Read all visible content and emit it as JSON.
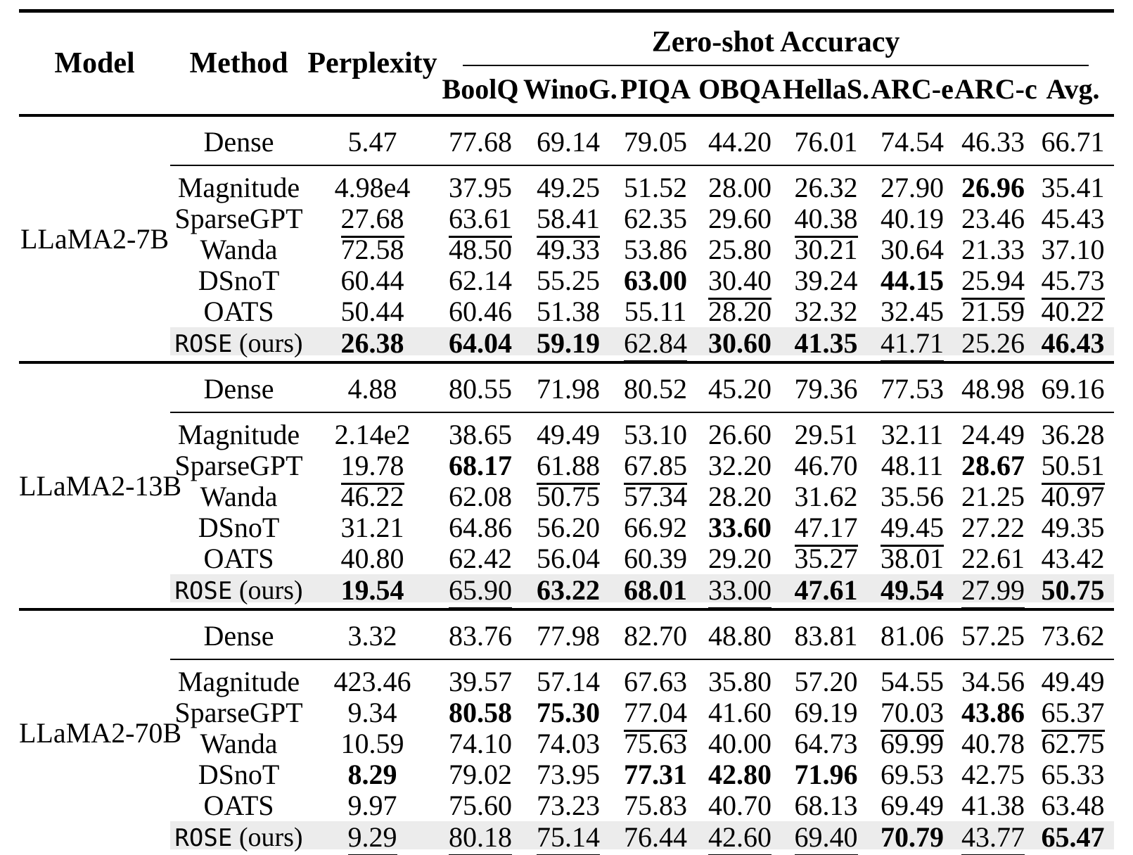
{
  "table": {
    "highlight_color": "#ececec",
    "header": {
      "model": "Model",
      "method": "Method",
      "perplexity": "Perplexity",
      "zero_shot": "Zero-shot Accuracy",
      "benchmarks": [
        "BoolQ",
        "WinoG.",
        "PIQA",
        "OBQA",
        "HellaS.",
        "ARC-e",
        "ARC-c",
        "Avg."
      ]
    },
    "columns": [
      "perplexity",
      "boolq",
      "winog",
      "piqa",
      "obqa",
      "hellas",
      "arc-e",
      "arc-c",
      "avg"
    ],
    "ours_suffix": " (ours)",
    "groups": [
      {
        "model": "LLaMA2-7B",
        "rows": [
          {
            "method": "Dense",
            "dense": true,
            "cells": [
              {
                "v": "5.47"
              },
              {
                "v": "77.68"
              },
              {
                "v": "69.14"
              },
              {
                "v": "79.05"
              },
              {
                "v": "44.20"
              },
              {
                "v": "76.01"
              },
              {
                "v": "74.54"
              },
              {
                "v": "46.33"
              },
              {
                "v": "66.71"
              }
            ]
          },
          {
            "method": "Magnitude",
            "cells": [
              {
                "v": "4.98e4"
              },
              {
                "v": "37.95"
              },
              {
                "v": "49.25"
              },
              {
                "v": "51.52"
              },
              {
                "v": "28.00"
              },
              {
                "v": "26.32"
              },
              {
                "v": "27.90"
              },
              {
                "v": "26.96",
                "b": 1
              },
              {
                "v": "35.41"
              }
            ]
          },
          {
            "method": "SparseGPT",
            "cells": [
              {
                "v": "27.68",
                "u": 1
              },
              {
                "v": "63.61",
                "u": 1
              },
              {
                "v": "58.41",
                "u": 1
              },
              {
                "v": "62.35"
              },
              {
                "v": "29.60"
              },
              {
                "v": "40.38",
                "u": 1
              },
              {
                "v": "40.19"
              },
              {
                "v": "23.46"
              },
              {
                "v": "45.43"
              }
            ]
          },
          {
            "method": "Wanda",
            "cells": [
              {
                "v": "72.58"
              },
              {
                "v": "48.50"
              },
              {
                "v": "49.33"
              },
              {
                "v": "53.86"
              },
              {
                "v": "25.80"
              },
              {
                "v": "30.21"
              },
              {
                "v": "30.64"
              },
              {
                "v": "21.33"
              },
              {
                "v": "37.10"
              }
            ]
          },
          {
            "method": "DSnoT",
            "cells": [
              {
                "v": "60.44"
              },
              {
                "v": "62.14"
              },
              {
                "v": "55.25"
              },
              {
                "v": "63.00",
                "b": 1
              },
              {
                "v": "30.40",
                "u": 1
              },
              {
                "v": "39.24"
              },
              {
                "v": "44.15",
                "b": 1
              },
              {
                "v": "25.94",
                "u": 1
              },
              {
                "v": "45.73",
                "u": 1
              }
            ]
          },
          {
            "method": "OATS",
            "cells": [
              {
                "v": "50.44"
              },
              {
                "v": "60.46"
              },
              {
                "v": "51.38"
              },
              {
                "v": "55.11"
              },
              {
                "v": "28.20"
              },
              {
                "v": "32.32"
              },
              {
                "v": "32.45"
              },
              {
                "v": "21.59"
              },
              {
                "v": "40.22"
              }
            ]
          },
          {
            "method": "ROSE",
            "ours": true,
            "cells": [
              {
                "v": "26.38",
                "b": 1
              },
              {
                "v": "64.04",
                "b": 1
              },
              {
                "v": "59.19",
                "b": 1
              },
              {
                "v": "62.84",
                "u": 1
              },
              {
                "v": "30.60",
                "b": 1
              },
              {
                "v": "41.35",
                "b": 1
              },
              {
                "v": "41.71",
                "u": 1
              },
              {
                "v": "25.26"
              },
              {
                "v": "46.43",
                "b": 1
              }
            ]
          }
        ]
      },
      {
        "model": "LLaMA2-13B",
        "rows": [
          {
            "method": "Dense",
            "dense": true,
            "cells": [
              {
                "v": "4.88"
              },
              {
                "v": "80.55"
              },
              {
                "v": "71.98"
              },
              {
                "v": "80.52"
              },
              {
                "v": "45.20"
              },
              {
                "v": "79.36"
              },
              {
                "v": "77.53"
              },
              {
                "v": "48.98"
              },
              {
                "v": "69.16"
              }
            ]
          },
          {
            "method": "Magnitude",
            "cells": [
              {
                "v": "2.14e2"
              },
              {
                "v": "38.65"
              },
              {
                "v": "49.49"
              },
              {
                "v": "53.10"
              },
              {
                "v": "26.60"
              },
              {
                "v": "29.51"
              },
              {
                "v": "32.11"
              },
              {
                "v": "24.49"
              },
              {
                "v": "36.28"
              }
            ]
          },
          {
            "method": "SparseGPT",
            "cells": [
              {
                "v": "19.78",
                "u": 1
              },
              {
                "v": "68.17",
                "b": 1
              },
              {
                "v": "61.88",
                "u": 1
              },
              {
                "v": "67.85",
                "u": 1
              },
              {
                "v": "32.20"
              },
              {
                "v": "46.70"
              },
              {
                "v": "48.11"
              },
              {
                "v": "28.67",
                "b": 1
              },
              {
                "v": "50.51",
                "u": 1
              }
            ]
          },
          {
            "method": "Wanda",
            "cells": [
              {
                "v": "46.22"
              },
              {
                "v": "62.08"
              },
              {
                "v": "50.75"
              },
              {
                "v": "57.34"
              },
              {
                "v": "28.20"
              },
              {
                "v": "31.62"
              },
              {
                "v": "35.56"
              },
              {
                "v": "21.25"
              },
              {
                "v": "40.97"
              }
            ]
          },
          {
            "method": "DSnoT",
            "cells": [
              {
                "v": "31.21"
              },
              {
                "v": "64.86"
              },
              {
                "v": "56.20"
              },
              {
                "v": "66.92"
              },
              {
                "v": "33.60",
                "b": 1
              },
              {
                "v": "47.17",
                "u": 1
              },
              {
                "v": "49.45",
                "u": 1
              },
              {
                "v": "27.22"
              },
              {
                "v": "49.35"
              }
            ]
          },
          {
            "method": "OATS",
            "cells": [
              {
                "v": "40.80"
              },
              {
                "v": "62.42"
              },
              {
                "v": "56.04"
              },
              {
                "v": "60.39"
              },
              {
                "v": "29.20"
              },
              {
                "v": "35.27"
              },
              {
                "v": "38.01"
              },
              {
                "v": "22.61"
              },
              {
                "v": "43.42"
              }
            ]
          },
          {
            "method": "ROSE",
            "ours": true,
            "cells": [
              {
                "v": "19.54",
                "b": 1
              },
              {
                "v": "65.90",
                "u": 1
              },
              {
                "v": "63.22",
                "b": 1
              },
              {
                "v": "68.01",
                "b": 1
              },
              {
                "v": "33.00",
                "u": 1
              },
              {
                "v": "47.61",
                "b": 1
              },
              {
                "v": "49.54",
                "b": 1
              },
              {
                "v": "27.99",
                "u": 1
              },
              {
                "v": "50.75",
                "b": 1
              }
            ]
          }
        ]
      },
      {
        "model": "LLaMA2-70B",
        "rows": [
          {
            "method": "Dense",
            "dense": true,
            "cells": [
              {
                "v": "3.32"
              },
              {
                "v": "83.76"
              },
              {
                "v": "77.98"
              },
              {
                "v": "82.70"
              },
              {
                "v": "48.80"
              },
              {
                "v": "83.81"
              },
              {
                "v": "81.06"
              },
              {
                "v": "57.25"
              },
              {
                "v": "73.62"
              }
            ]
          },
          {
            "method": "Magnitude",
            "cells": [
              {
                "v": "423.46"
              },
              {
                "v": "39.57"
              },
              {
                "v": "57.14"
              },
              {
                "v": "67.63"
              },
              {
                "v": "35.80"
              },
              {
                "v": "57.20"
              },
              {
                "v": "54.55"
              },
              {
                "v": "34.56"
              },
              {
                "v": "49.49"
              }
            ]
          },
          {
            "method": "SparseGPT",
            "cells": [
              {
                "v": "9.34"
              },
              {
                "v": "80.58",
                "b": 1
              },
              {
                "v": "75.30",
                "b": 1
              },
              {
                "v": "77.04",
                "u": 1
              },
              {
                "v": "41.60"
              },
              {
                "v": "69.19"
              },
              {
                "v": "70.03",
                "u": 1
              },
              {
                "v": "43.86",
                "b": 1
              },
              {
                "v": "65.37",
                "u": 1
              }
            ]
          },
          {
            "method": "Wanda",
            "cells": [
              {
                "v": "10.59"
              },
              {
                "v": "74.10"
              },
              {
                "v": "74.03"
              },
              {
                "v": "75.63"
              },
              {
                "v": "40.00"
              },
              {
                "v": "64.73"
              },
              {
                "v": "69.99"
              },
              {
                "v": "40.78"
              },
              {
                "v": "62.75"
              }
            ]
          },
          {
            "method": "DSnoT",
            "cells": [
              {
                "v": "8.29",
                "b": 1
              },
              {
                "v": "79.02"
              },
              {
                "v": "73.95"
              },
              {
                "v": "77.31",
                "b": 1
              },
              {
                "v": "42.80",
                "b": 1
              },
              {
                "v": "71.96",
                "b": 1
              },
              {
                "v": "69.53"
              },
              {
                "v": "42.75"
              },
              {
                "v": "65.33"
              }
            ]
          },
          {
            "method": "OATS",
            "cells": [
              {
                "v": "9.97"
              },
              {
                "v": "75.60"
              },
              {
                "v": "73.23"
              },
              {
                "v": "75.83"
              },
              {
                "v": "40.70"
              },
              {
                "v": "68.13"
              },
              {
                "v": "69.49"
              },
              {
                "v": "41.38"
              },
              {
                "v": "63.48"
              }
            ]
          },
          {
            "method": "ROSE",
            "ours": true,
            "cells": [
              {
                "v": "9.29",
                "u": 1
              },
              {
                "v": "80.18",
                "u": 1
              },
              {
                "v": "75.14",
                "u": 1
              },
              {
                "v": "76.44"
              },
              {
                "v": "42.60",
                "u": 1
              },
              {
                "v": "69.40",
                "u": 1
              },
              {
                "v": "70.79",
                "b": 1
              },
              {
                "v": "43.77",
                "u": 1
              },
              {
                "v": "65.47",
                "b": 1
              }
            ]
          }
        ]
      }
    ]
  }
}
